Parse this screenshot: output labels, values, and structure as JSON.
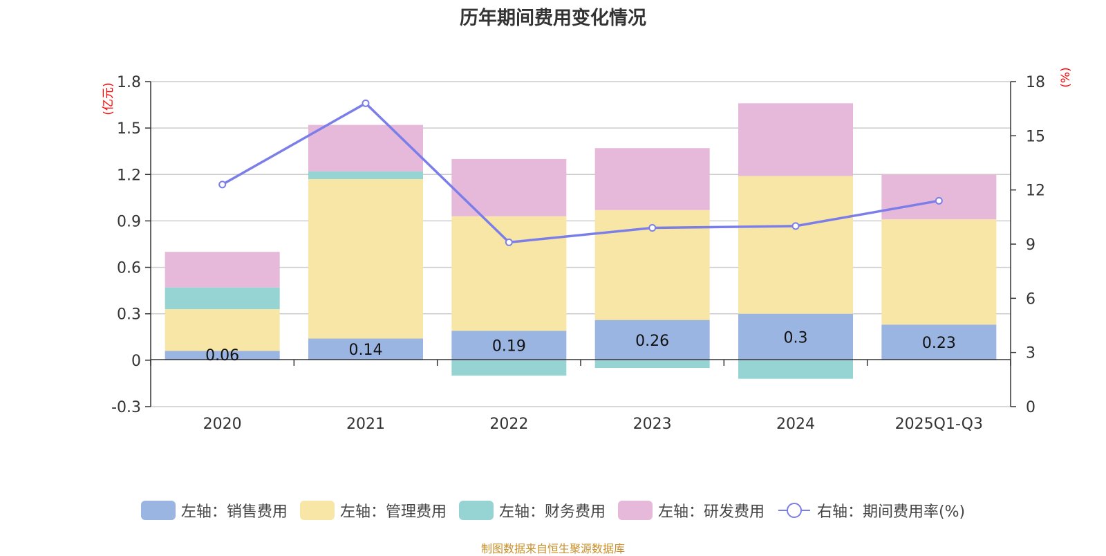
{
  "chart_data": {
    "type": "bar",
    "title": "历年期间费用变化情况",
    "categories": [
      "2020",
      "2021",
      "2022",
      "2023",
      "2024",
      "2025Q1-Q3"
    ],
    "stacked": true,
    "series": [
      {
        "name": "左轴：销售费用",
        "axis": "left",
        "color": "#9ab5e1",
        "values": [
          0.06,
          0.14,
          0.19,
          0.26,
          0.3,
          0.23
        ],
        "labels": [
          "0.06",
          "0.14",
          "0.19",
          "0.26",
          "0.3",
          "0.23"
        ]
      },
      {
        "name": "左轴：管理费用",
        "axis": "left",
        "color": "#f8e6a6",
        "values": [
          0.27,
          1.03,
          0.74,
          0.71,
          0.89,
          0.68
        ]
      },
      {
        "name": "左轴：财务费用",
        "axis": "left",
        "color": "#96d3d3",
        "values": [
          0.14,
          0.05,
          -0.1,
          -0.05,
          -0.12,
          0.0
        ]
      },
      {
        "name": "左轴：研发费用",
        "axis": "left",
        "color": "#e6b8d9",
        "values": [
          0.23,
          0.3,
          0.37,
          0.4,
          0.47,
          0.29
        ]
      }
    ],
    "line_series": {
      "name": "右轴：期间费用率(%)",
      "axis": "right",
      "color": "#7b7ee8",
      "values": [
        12.3,
        16.8,
        9.1,
        9.9,
        10.0,
        11.4
      ]
    },
    "left_axis": {
      "label": "(亿元)",
      "min": -0.3,
      "max": 1.8,
      "ticks": [
        -0.3,
        0,
        0.3,
        0.6,
        0.9,
        1.2,
        1.5,
        1.8
      ],
      "tick_labels": [
        "-0.3",
        "0",
        "0.3",
        "0.6",
        "0.9",
        "1.2",
        "1.5",
        "1.8"
      ]
    },
    "right_axis": {
      "label": "(%)",
      "min": 0,
      "max": 18,
      "ticks": [
        0,
        3,
        6,
        9,
        12,
        15,
        18
      ],
      "tick_labels": [
        "0",
        "3",
        "6",
        "9",
        "12",
        "15",
        "18"
      ]
    },
    "grid": true,
    "legend_position": "bottom"
  },
  "colors": {
    "axis_label": "#ff0000",
    "grid": "#cccccc",
    "text": "#333333"
  },
  "source_text": "制图数据来自恒生聚源数据库"
}
